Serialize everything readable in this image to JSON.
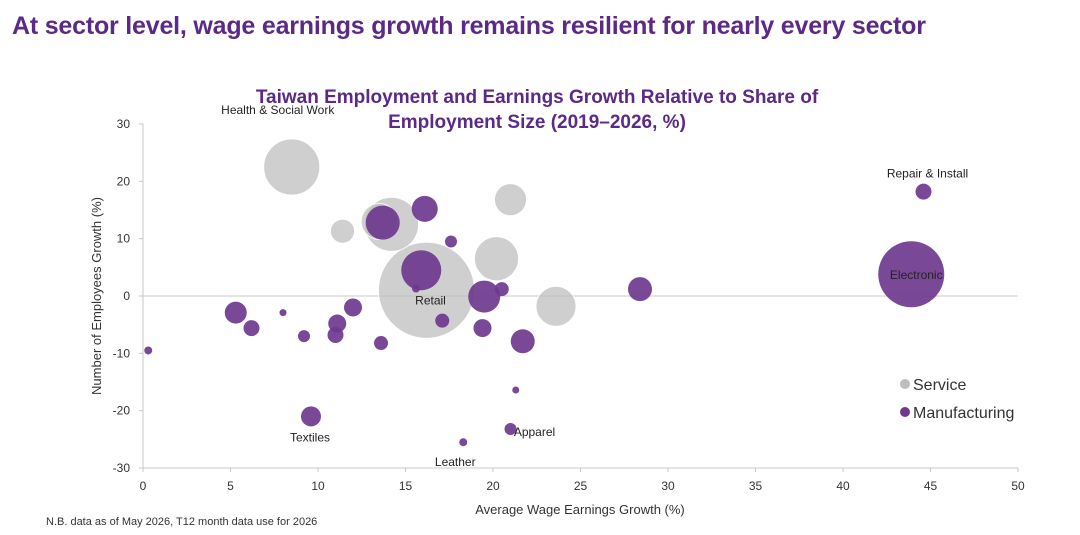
{
  "page": {
    "headline": "At sector level, wage earnings growth remains resilient for nearly every sector",
    "footnote": "N.B. data as of May 2026, T12 month data use for 2026"
  },
  "colors": {
    "headline": "#5b2a86",
    "service": "#bdbdbd",
    "manufacturing": "#6e3a8e",
    "axis": "#c8c8c8"
  },
  "chart_data": {
    "type": "scatter",
    "bubble": true,
    "title_lines": [
      "Taiwan Employment and Earnings Growth Relative to Share of",
      "Employment Size (2019–2026, %)"
    ],
    "xlabel": "Average Wage Earnings Growth (%)",
    "ylabel": "Number of Employees Growth (%)",
    "xlim": [
      0,
      50
    ],
    "ylim": [
      -30,
      30
    ],
    "xticks": [
      "0",
      "5",
      "10",
      "15",
      "20",
      "25",
      "30",
      "35",
      "40",
      "45",
      "50"
    ],
    "yticks": [
      "30",
      "20",
      "10",
      "0",
      "-10",
      "-20",
      "-30"
    ],
    "grid": false,
    "legend_position": "right",
    "series": [
      {
        "name": "Service",
        "color": "#bdbdbd",
        "points": [
          {
            "x": 8.5,
            "y": 22.5,
            "r": 28,
            "label": "Health & Social Work"
          },
          {
            "x": 16.2,
            "y": 1.0,
            "r": 48,
            "label": "Retail"
          },
          {
            "x": 14.2,
            "y": 12.5,
            "r": 27,
            "label": ""
          },
          {
            "x": 13.5,
            "y": 13.0,
            "r": 18,
            "label": ""
          },
          {
            "x": 11.4,
            "y": 11.3,
            "r": 12,
            "label": ""
          },
          {
            "x": 21.0,
            "y": 16.8,
            "r": 16,
            "label": ""
          },
          {
            "x": 20.2,
            "y": 6.5,
            "r": 22,
            "label": ""
          },
          {
            "x": 23.6,
            "y": -1.8,
            "r": 20,
            "label": ""
          }
        ]
      },
      {
        "name": "Manufacturing",
        "color": "#6e3a8e",
        "points": [
          {
            "x": 43.9,
            "y": 3.8,
            "r": 33,
            "label": "Electronic"
          },
          {
            "x": 44.6,
            "y": 18.2,
            "r": 8,
            "label": "Repair & Install"
          },
          {
            "x": 9.6,
            "y": -21.0,
            "r": 10,
            "label": "Textiles"
          },
          {
            "x": 18.3,
            "y": -25.5,
            "r": 4,
            "label": "Leather"
          },
          {
            "x": 21.0,
            "y": -23.2,
            "r": 6,
            "label": "Apparel"
          },
          {
            "x": 15.9,
            "y": 4.5,
            "r": 20,
            "label": ""
          },
          {
            "x": 13.7,
            "y": 12.8,
            "r": 17,
            "label": ""
          },
          {
            "x": 16.1,
            "y": 15.2,
            "r": 13,
            "label": ""
          },
          {
            "x": 17.6,
            "y": 9.5,
            "r": 6,
            "label": ""
          },
          {
            "x": 19.5,
            "y": -0.1,
            "r": 16,
            "label": ""
          },
          {
            "x": 20.5,
            "y": 1.2,
            "r": 7,
            "label": ""
          },
          {
            "x": 28.4,
            "y": 1.2,
            "r": 12,
            "label": ""
          },
          {
            "x": 5.3,
            "y": -2.9,
            "r": 11,
            "label": ""
          },
          {
            "x": 6.2,
            "y": -5.6,
            "r": 8,
            "label": ""
          },
          {
            "x": 8.0,
            "y": -2.9,
            "r": 3.5,
            "label": ""
          },
          {
            "x": 9.2,
            "y": -7.0,
            "r": 6,
            "label": ""
          },
          {
            "x": 11.1,
            "y": -4.8,
            "r": 9,
            "label": ""
          },
          {
            "x": 11.0,
            "y": -6.8,
            "r": 8,
            "label": ""
          },
          {
            "x": 12.0,
            "y": -2.0,
            "r": 9,
            "label": ""
          },
          {
            "x": 13.6,
            "y": -8.2,
            "r": 7,
            "label": ""
          },
          {
            "x": 15.6,
            "y": 1.3,
            "r": 4,
            "label": ""
          },
          {
            "x": 17.1,
            "y": -4.3,
            "r": 7,
            "label": ""
          },
          {
            "x": 19.4,
            "y": -5.6,
            "r": 9,
            "label": ""
          },
          {
            "x": 21.7,
            "y": -7.9,
            "r": 12,
            "label": ""
          },
          {
            "x": 21.3,
            "y": -16.4,
            "r": 3.5,
            "label": ""
          },
          {
            "x": 0.3,
            "y": -9.5,
            "r": 4,
            "label": ""
          }
        ]
      }
    ]
  }
}
